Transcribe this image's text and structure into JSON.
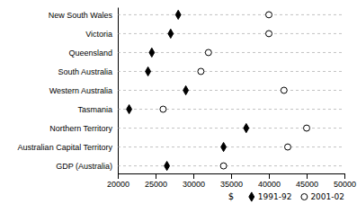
{
  "chart_data": {
    "type": "dot",
    "categories": [
      "New South Wales",
      "Victoria",
      "Queensland",
      "South Australia",
      "Western Australia",
      "Tasmania",
      "Northern Territory",
      "Australian Capital Territory",
      "GDP (Australia)"
    ],
    "series": [
      {
        "name": "1991-92",
        "color": "#000000",
        "marker": "diamond",
        "values": [
          28000,
          27000,
          24500,
          24000,
          29000,
          21500,
          37000,
          34000,
          26500
        ]
      },
      {
        "name": "2001-02",
        "color": "#000000",
        "marker": "circle-open",
        "values": [
          40000,
          40000,
          32000,
          31000,
          42000,
          26000,
          45000,
          42500,
          34000
        ]
      }
    ],
    "xlim": [
      20000,
      50000
    ],
    "xticks": [
      20000,
      25000,
      30000,
      35000,
      40000,
      45000,
      50000
    ],
    "xlabel": "$",
    "grid": true,
    "legend": "lower right"
  }
}
